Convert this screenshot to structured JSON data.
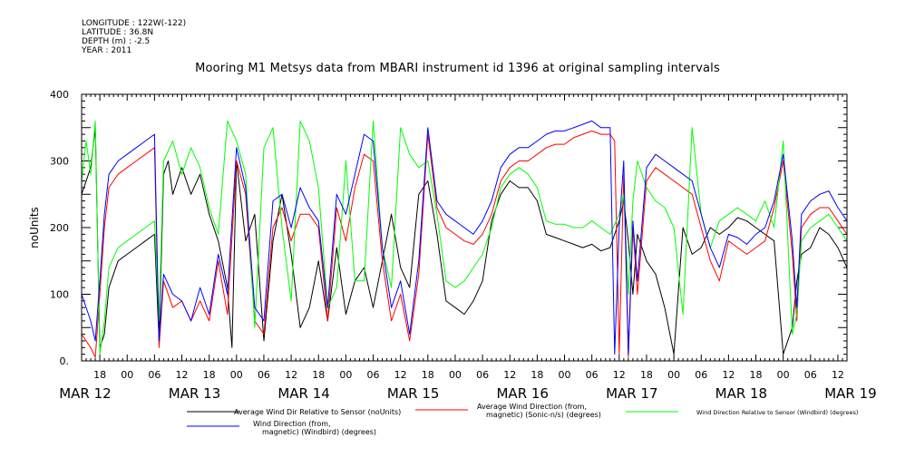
{
  "meta": {
    "longitude": "LONGITUDE : 122W(-122)",
    "latitude": "LATITUDE : 36.8N",
    "depth": "DEPTH (m) : -2.5",
    "year": "YEAR : 2011"
  },
  "chart_data": {
    "type": "line",
    "title": "Mooring M1 Metsys data from MBARI instrument id 1396 at original sampling intervals",
    "ylabel": "noUnits",
    "xlabel": "",
    "ylim": [
      0,
      400
    ],
    "xlim": [
      14,
      182
    ],
    "yticks": [
      0,
      100,
      200,
      300,
      400
    ],
    "ytick_labels": [
      "0.",
      "100",
      "200",
      "300",
      "400"
    ],
    "x_hour_ticks": [
      {
        "x": 18,
        "label": "18"
      },
      {
        "x": 24,
        "label": "00"
      },
      {
        "x": 30,
        "label": "06"
      },
      {
        "x": 36,
        "label": "12"
      },
      {
        "x": 42,
        "label": "18"
      },
      {
        "x": 48,
        "label": "00"
      },
      {
        "x": 54,
        "label": "06"
      },
      {
        "x": 60,
        "label": "12"
      },
      {
        "x": 66,
        "label": "18"
      },
      {
        "x": 72,
        "label": "00"
      },
      {
        "x": 78,
        "label": "06"
      },
      {
        "x": 84,
        "label": "12"
      },
      {
        "x": 90,
        "label": "18"
      },
      {
        "x": 96,
        "label": "00"
      },
      {
        "x": 102,
        "label": "06"
      },
      {
        "x": 108,
        "label": "12"
      },
      {
        "x": 114,
        "label": "18"
      },
      {
        "x": 120,
        "label": "00"
      },
      {
        "x": 126,
        "label": "06"
      },
      {
        "x": 132,
        "label": "12"
      },
      {
        "x": 138,
        "label": "18"
      },
      {
        "x": 144,
        "label": "00"
      },
      {
        "x": 150,
        "label": "06"
      },
      {
        "x": 156,
        "label": "12"
      },
      {
        "x": 162,
        "label": "18"
      },
      {
        "x": 168,
        "label": "00"
      },
      {
        "x": 174,
        "label": "06"
      },
      {
        "x": 180,
        "label": "12"
      }
    ],
    "x_day_labels": [
      {
        "x": 12,
        "label": "MAR 12"
      },
      {
        "x": 36,
        "label": "MAR 13"
      },
      {
        "x": 60,
        "label": "MAR 14"
      },
      {
        "x": 84,
        "label": "MAR 15"
      },
      {
        "x": 108,
        "label": "MAR 16"
      },
      {
        "x": 132,
        "label": "MAR 17"
      },
      {
        "x": 156,
        "label": "MAR 18"
      },
      {
        "x": 180,
        "label": "MAR 19"
      }
    ],
    "legend_placement": "bottom",
    "series": [
      {
        "name": "Average Wind Dir Relative to Sensor (noUnits)",
        "color": "#000000",
        "x": [
          14,
          16,
          17,
          18,
          19,
          20,
          22,
          24,
          26,
          28,
          30,
          31,
          32,
          33,
          34,
          36,
          38,
          40,
          42,
          44,
          46,
          47,
          48,
          50,
          52,
          54,
          56,
          58,
          60,
          62,
          64,
          66,
          68,
          70,
          72,
          74,
          76,
          78,
          80,
          82,
          84,
          86,
          88,
          90,
          92,
          94,
          96,
          98,
          100,
          102,
          104,
          106,
          108,
          110,
          112,
          114,
          116,
          118,
          120,
          122,
          124,
          126,
          128,
          130,
          131,
          132,
          133,
          134,
          135,
          136,
          138,
          140,
          142,
          144,
          146,
          148,
          150,
          152,
          154,
          156,
          158,
          160,
          162,
          164,
          166,
          168,
          170,
          171,
          172,
          174,
          176,
          178,
          180,
          182
        ],
        "y": [
          250,
          290,
          350,
          20,
          40,
          110,
          150,
          160,
          170,
          180,
          190,
          30,
          280,
          300,
          250,
          290,
          250,
          280,
          220,
          180,
          110,
          20,
          300,
          180,
          220,
          30,
          180,
          250,
          160,
          50,
          80,
          150,
          60,
          170,
          70,
          120,
          140,
          80,
          150,
          220,
          140,
          110,
          250,
          270,
          190,
          90,
          80,
          70,
          90,
          120,
          210,
          250,
          270,
          260,
          260,
          240,
          190,
          185,
          180,
          175,
          170,
          175,
          165,
          170,
          190,
          210,
          240,
          180,
          100,
          190,
          150,
          130,
          80,
          10,
          200,
          160,
          170,
          200,
          190,
          200,
          215,
          210,
          200,
          190,
          180,
          10,
          50,
          120,
          160,
          170,
          200,
          190,
          170,
          140
        ]
      },
      {
        "name": "Average Wind Direction (from, magnetic) (Sonic-n/s) (degrees)",
        "color": "#ff0000",
        "x": [
          14,
          16,
          17,
          18,
          19,
          20,
          22,
          24,
          26,
          28,
          30,
          31,
          32,
          34,
          36,
          38,
          40,
          42,
          44,
          46,
          48,
          50,
          52,
          54,
          56,
          58,
          60,
          62,
          64,
          66,
          68,
          70,
          72,
          74,
          76,
          78,
          80,
          82,
          84,
          86,
          88,
          90,
          92,
          94,
          96,
          98,
          100,
          102,
          104,
          106,
          108,
          110,
          112,
          114,
          116,
          118,
          120,
          122,
          124,
          126,
          128,
          130,
          131,
          132,
          133,
          134,
          135,
          136,
          138,
          140,
          142,
          144,
          146,
          148,
          150,
          152,
          154,
          156,
          158,
          160,
          162,
          164,
          166,
          168,
          170,
          171,
          172,
          174,
          176,
          178,
          180,
          182
        ],
        "y": [
          40,
          20,
          5,
          100,
          200,
          260,
          280,
          290,
          300,
          310,
          320,
          20,
          120,
          80,
          90,
          60,
          90,
          60,
          150,
          70,
          300,
          250,
          60,
          40,
          200,
          230,
          180,
          220,
          220,
          200,
          60,
          230,
          180,
          260,
          310,
          300,
          150,
          60,
          100,
          30,
          130,
          340,
          230,
          200,
          190,
          180,
          175,
          190,
          220,
          270,
          290,
          300,
          300,
          310,
          320,
          325,
          325,
          335,
          340,
          345,
          340,
          340,
          330,
          10,
          280,
          5,
          200,
          100,
          270,
          290,
          280,
          270,
          260,
          250,
          200,
          150,
          120,
          180,
          170,
          160,
          170,
          180,
          230,
          300,
          160,
          60,
          200,
          220,
          230,
          230,
          210,
          190
        ]
      },
      {
        "name": "Wind Direction Relative to Sensor (Windbird) (degrees)",
        "color": "#00ff00",
        "x": [
          14,
          15,
          16,
          17,
          18,
          19,
          20,
          22,
          24,
          26,
          28,
          30,
          31,
          32,
          34,
          36,
          38,
          40,
          42,
          44,
          46,
          48,
          50,
          52,
          54,
          56,
          58,
          60,
          62,
          64,
          66,
          68,
          70,
          72,
          74,
          76,
          78,
          80,
          82,
          84,
          86,
          88,
          90,
          92,
          94,
          96,
          98,
          100,
          102,
          104,
          106,
          108,
          110,
          112,
          114,
          116,
          118,
          120,
          122,
          124,
          126,
          128,
          130,
          132,
          133,
          134,
          135,
          136,
          138,
          140,
          142,
          144,
          146,
          148,
          150,
          152,
          154,
          156,
          158,
          160,
          162,
          164,
          166,
          168,
          170,
          171,
          172,
          174,
          176,
          178,
          180,
          182
        ],
        "y": [
          270,
          330,
          280,
          360,
          10,
          60,
          140,
          170,
          180,
          190,
          200,
          210,
          60,
          300,
          330,
          280,
          320,
          290,
          230,
          190,
          360,
          330,
          280,
          50,
          320,
          350,
          200,
          90,
          360,
          330,
          260,
          80,
          110,
          300,
          120,
          120,
          360,
          170,
          110,
          350,
          310,
          290,
          300,
          220,
          120,
          110,
          120,
          140,
          160,
          200,
          260,
          280,
          290,
          280,
          260,
          210,
          205,
          205,
          200,
          200,
          210,
          200,
          190,
          220,
          250,
          100,
          240,
          300,
          260,
          240,
          230,
          200,
          70,
          350,
          220,
          170,
          210,
          220,
          230,
          220,
          210,
          240,
          200,
          330,
          40,
          70,
          180,
          200,
          210,
          220,
          200,
          180
        ]
      },
      {
        "name": "Wind Direction (from, magnetic) (Windbird) (degrees)",
        "color": "#0000ff",
        "x": [
          14,
          16,
          17,
          18,
          19,
          20,
          22,
          24,
          26,
          28,
          30,
          31,
          32,
          34,
          36,
          38,
          40,
          42,
          44,
          46,
          48,
          50,
          52,
          54,
          56,
          58,
          60,
          62,
          64,
          66,
          68,
          70,
          72,
          74,
          76,
          78,
          80,
          82,
          84,
          86,
          88,
          90,
          92,
          94,
          96,
          98,
          100,
          102,
          104,
          106,
          108,
          110,
          112,
          114,
          116,
          118,
          120,
          122,
          124,
          126,
          128,
          130,
          131,
          132,
          133,
          134,
          135,
          136,
          138,
          140,
          142,
          144,
          146,
          148,
          150,
          152,
          154,
          156,
          158,
          160,
          162,
          164,
          166,
          168,
          170,
          171,
          172,
          174,
          176,
          178,
          180,
          182
        ],
        "y": [
          100,
          60,
          30,
          120,
          220,
          280,
          300,
          310,
          320,
          330,
          340,
          30,
          130,
          100,
          90,
          60,
          110,
          70,
          160,
          100,
          320,
          260,
          80,
          60,
          240,
          250,
          200,
          260,
          230,
          210,
          80,
          250,
          220,
          280,
          340,
          330,
          170,
          80,
          120,
          40,
          150,
          350,
          240,
          220,
          210,
          200,
          190,
          210,
          240,
          290,
          310,
          320,
          320,
          330,
          340,
          345,
          345,
          350,
          355,
          360,
          350,
          350,
          10,
          200,
          300,
          10,
          210,
          120,
          290,
          310,
          300,
          290,
          280,
          270,
          220,
          170,
          140,
          190,
          185,
          175,
          190,
          200,
          240,
          310,
          180,
          80,
          220,
          240,
          250,
          255,
          230,
          210
        ]
      }
    ]
  }
}
